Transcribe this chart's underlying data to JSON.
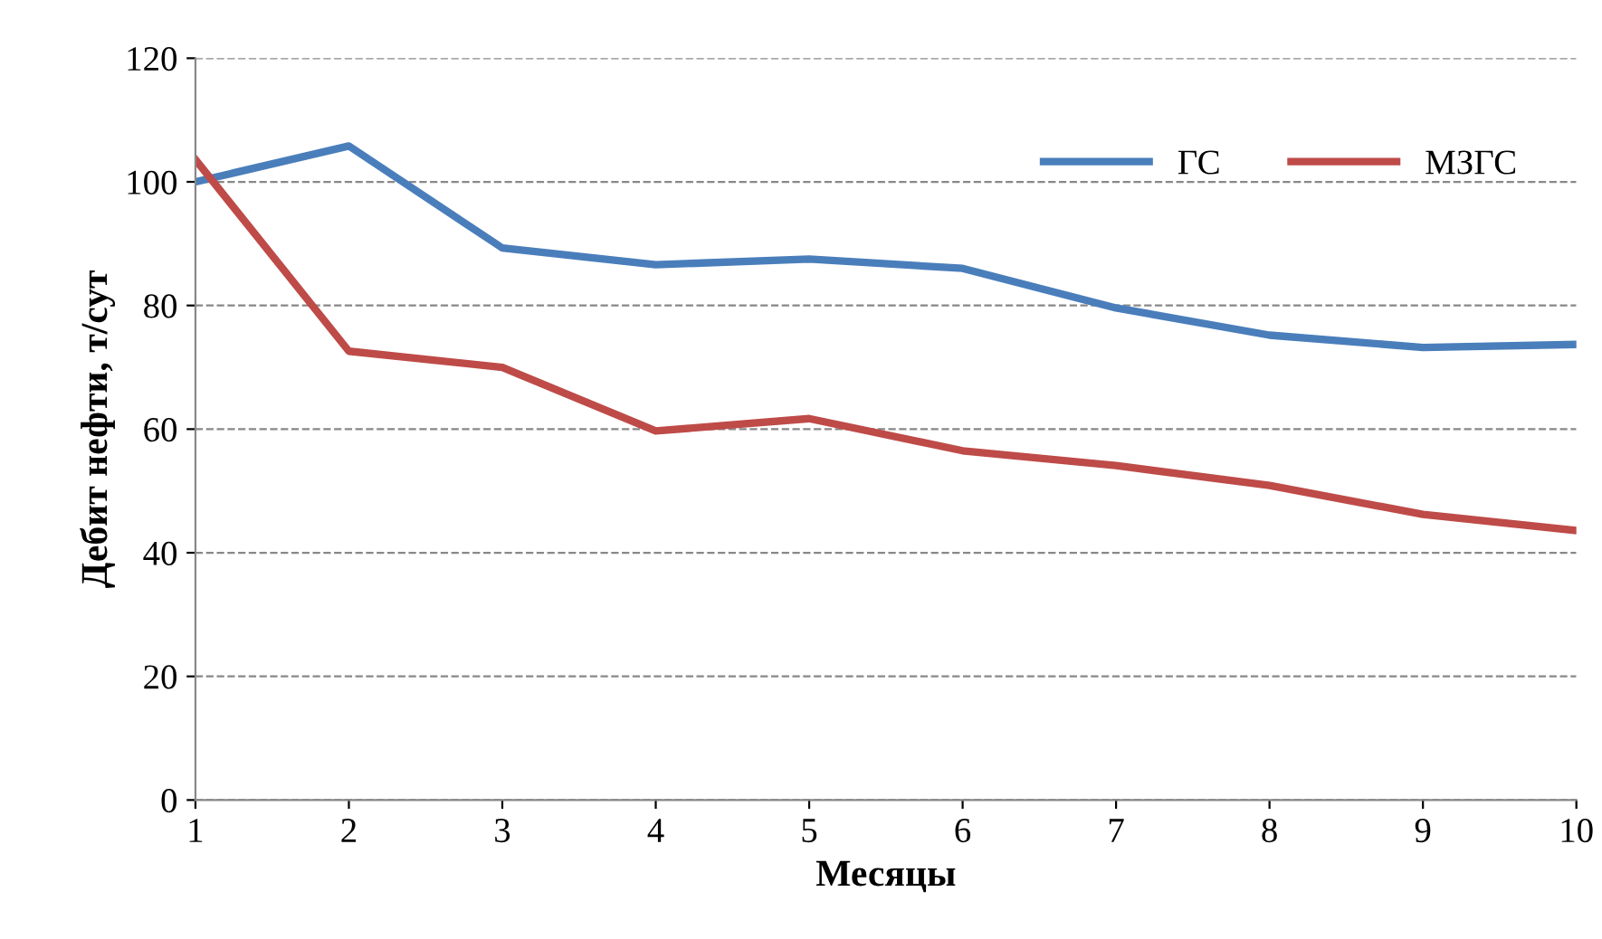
{
  "chart_data": {
    "type": "line",
    "xlabel": "Месяцы",
    "ylabel": "Дебит нефти, т/сут",
    "x": [
      1,
      2,
      3,
      4,
      5,
      6,
      7,
      8,
      9,
      10
    ],
    "series": [
      {
        "name": "ГС",
        "color": "#4a7ebb",
        "values": [
          100,
          105.8,
          89.3,
          86.6,
          87.5,
          86,
          79.6,
          75.2,
          73.2,
          73.7
        ]
      },
      {
        "name": "МЗГС",
        "color": "#be4b48",
        "values": [
          103.6,
          72.6,
          70,
          59.7,
          61.7,
          56.5,
          54.1,
          50.9,
          46.2,
          43.6
        ]
      }
    ],
    "xlim": [
      1,
      10
    ],
    "xticks": [
      1,
      2,
      3,
      4,
      5,
      6,
      7,
      8,
      9,
      10
    ],
    "ylim": [
      0,
      120
    ],
    "yticks": [
      0,
      20,
      40,
      60,
      80,
      100,
      120
    ],
    "grid": "y",
    "legend": "top right",
    "marker": "none",
    "line_style": "solid"
  }
}
